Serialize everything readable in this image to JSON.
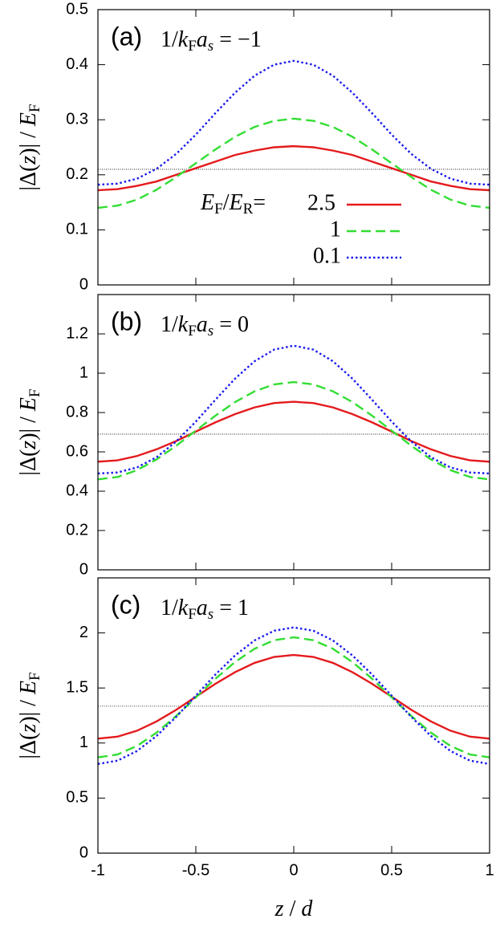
{
  "chart_data": [
    {
      "type": "line",
      "label": "(a)",
      "annotation": [
        "1/",
        "k",
        "F",
        "a",
        "s",
        " = −1"
      ],
      "y_label": [
        "|Δ(",
        "z",
        ")| / ",
        "E",
        "F"
      ],
      "legend_title": [
        "E",
        "F",
        "/",
        "E",
        "R",
        "= "
      ],
      "x": [
        -1,
        -0.9,
        -0.8,
        -0.7,
        -0.6,
        -0.5,
        -0.4,
        -0.3,
        -0.2,
        -0.1,
        0,
        0.1,
        0.2,
        0.3,
        0.4,
        0.5,
        0.6,
        0.7,
        0.8,
        0.9,
        1
      ],
      "series": [
        {
          "name": "2.5",
          "color": "#e41a1c",
          "dash": "solid",
          "values": [
            0.172,
            0.174,
            0.18,
            0.188,
            0.2,
            0.212,
            0.224,
            0.236,
            0.244,
            0.25,
            0.252,
            0.25,
            0.244,
            0.236,
            0.224,
            0.212,
            0.2,
            0.188,
            0.18,
            0.174,
            0.172
          ]
        },
        {
          "name": "1",
          "color": "#33dd33",
          "dash": "dashed",
          "values": [
            0.14,
            0.144,
            0.155,
            0.173,
            0.196,
            0.221,
            0.246,
            0.269,
            0.287,
            0.298,
            0.302,
            0.298,
            0.287,
            0.269,
            0.246,
            0.221,
            0.196,
            0.173,
            0.155,
            0.144,
            0.14
          ]
        },
        {
          "name": "0.1",
          "color": "#1a1aee",
          "dash": "dotted",
          "values": [
            0.182,
            0.184,
            0.193,
            0.211,
            0.238,
            0.273,
            0.312,
            0.349,
            0.38,
            0.4,
            0.407,
            0.4,
            0.38,
            0.349,
            0.312,
            0.273,
            0.238,
            0.211,
            0.193,
            0.184,
            0.182
          ]
        }
      ],
      "reference_line": 0.21,
      "xlim": [
        -1,
        1
      ],
      "xticks": [
        -1,
        -0.5,
        0,
        0.5,
        1
      ],
      "x_tick_labels": false,
      "ylim": [
        0,
        0.5
      ],
      "yticks": [
        0,
        0.1,
        0.2,
        0.3,
        0.4,
        0.5
      ]
    },
    {
      "type": "line",
      "label": "(b)",
      "annotation": [
        "1/",
        "k",
        "F",
        "a",
        "s",
        " = 0"
      ],
      "y_label": [
        "|Δ(",
        "z",
        ")| / ",
        "E",
        "F"
      ],
      "x": [
        -1,
        -0.9,
        -0.8,
        -0.7,
        -0.6,
        -0.5,
        -0.4,
        -0.3,
        -0.2,
        -0.1,
        0,
        0.1,
        0.2,
        0.3,
        0.4,
        0.5,
        0.6,
        0.7,
        0.8,
        0.9,
        1
      ],
      "series": [
        {
          "color": "#e41a1c",
          "dash": "solid",
          "values": [
            0.55,
            0.557,
            0.579,
            0.613,
            0.655,
            0.703,
            0.75,
            0.792,
            0.826,
            0.848,
            0.855,
            0.848,
            0.826,
            0.792,
            0.75,
            0.703,
            0.655,
            0.613,
            0.579,
            0.557,
            0.55
          ]
        },
        {
          "color": "#33dd33",
          "dash": "dashed",
          "values": [
            0.46,
            0.472,
            0.507,
            0.562,
            0.631,
            0.708,
            0.784,
            0.853,
            0.908,
            0.943,
            0.955,
            0.943,
            0.908,
            0.853,
            0.784,
            0.708,
            0.631,
            0.562,
            0.507,
            0.472,
            0.46
          ]
        },
        {
          "color": "#1a1aee",
          "dash": "dotted",
          "values": [
            0.49,
            0.495,
            0.521,
            0.573,
            0.653,
            0.754,
            0.865,
            0.972,
            1.061,
            1.12,
            1.14,
            1.12,
            1.061,
            0.972,
            0.865,
            0.754,
            0.653,
            0.573,
            0.521,
            0.495,
            0.49
          ]
        }
      ],
      "reference_line": 0.69,
      "xlim": [
        -1,
        1
      ],
      "xticks": [
        -1,
        -0.5,
        0,
        0.5,
        1
      ],
      "x_tick_labels": false,
      "ylim": [
        0,
        1.4
      ],
      "yticks": [
        0,
        0.2,
        0.4,
        0.6,
        0.8,
        1,
        1.2
      ]
    },
    {
      "type": "line",
      "label": "(c)",
      "annotation": [
        "1/",
        "k",
        "F",
        "a",
        "s",
        " = 1"
      ],
      "y_label": [
        "|Δ(",
        "z",
        ")| / ",
        "E",
        "F"
      ],
      "x_label": [
        "z",
        " / ",
        "d"
      ],
      "x": [
        -1,
        -0.9,
        -0.8,
        -0.7,
        -0.6,
        -0.5,
        -0.4,
        -0.3,
        -0.2,
        -0.1,
        0,
        0.1,
        0.2,
        0.3,
        0.4,
        0.5,
        0.6,
        0.7,
        0.8,
        0.9,
        1
      ],
      "series": [
        {
          "color": "#e41a1c",
          "dash": "solid",
          "values": [
            1.04,
            1.058,
            1.112,
            1.197,
            1.302,
            1.42,
            1.538,
            1.643,
            1.728,
            1.782,
            1.8,
            1.782,
            1.728,
            1.643,
            1.538,
            1.42,
            1.302,
            1.197,
            1.112,
            1.058,
            1.04
          ]
        },
        {
          "color": "#33dd33",
          "dash": "dashed",
          "values": [
            0.87,
            0.896,
            0.974,
            1.095,
            1.246,
            1.415,
            1.584,
            1.735,
            1.856,
            1.934,
            1.96,
            1.934,
            1.856,
            1.735,
            1.584,
            1.415,
            1.246,
            1.095,
            0.974,
            0.896,
            0.87
          ]
        },
        {
          "color": "#1a1aee",
          "dash": "dotted",
          "values": [
            0.81,
            0.84,
            0.928,
            1.065,
            1.238,
            1.43,
            1.622,
            1.795,
            1.932,
            2.02,
            2.05,
            2.02,
            1.932,
            1.795,
            1.622,
            1.43,
            1.238,
            1.065,
            0.928,
            0.84,
            0.81
          ]
        }
      ],
      "reference_line": 1.335,
      "xlim": [
        -1,
        1
      ],
      "xticks": [
        -1,
        -0.5,
        0,
        0.5,
        1
      ],
      "x_tick_labels": true,
      "ylim": [
        0,
        2.5
      ],
      "yticks": [
        0,
        0.5,
        1,
        1.5,
        2
      ]
    }
  ]
}
